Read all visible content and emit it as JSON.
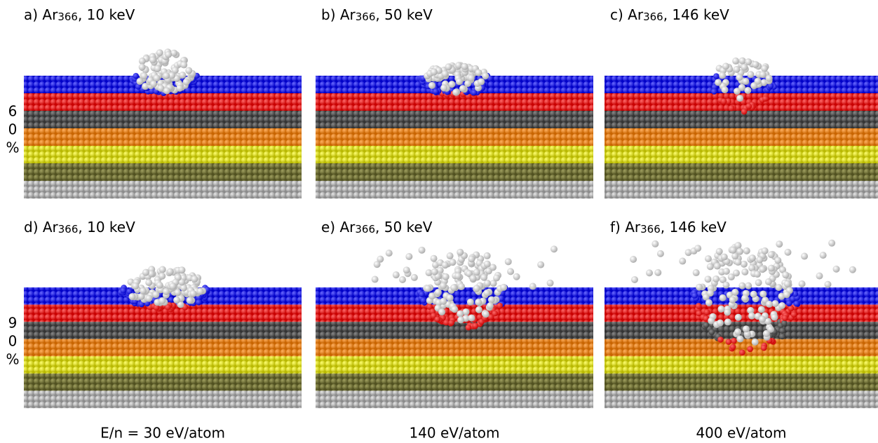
{
  "panels": [
    {
      "label": {
        "prefix": "a) Ar",
        "subscript": "366",
        "suffix": ", 10 keV"
      }
    },
    {
      "label": {
        "prefix": "b) Ar",
        "subscript": "366",
        "suffix": ", 50 keV"
      }
    },
    {
      "label": {
        "prefix": "c) Ar",
        "subscript": "366",
        "suffix": ", 146 keV"
      }
    },
    {
      "label": {
        "prefix": "d) Ar",
        "subscript": "366",
        "suffix": ", 10 keV"
      }
    },
    {
      "label": {
        "prefix": "e) Ar",
        "subscript": "366",
        "suffix": ", 50 keV"
      }
    },
    {
      "label": {
        "prefix": "f) Ar",
        "subscript": "366",
        "suffix": ", 146 keV"
      }
    }
  ],
  "row_labels": [
    [
      "6",
      "0",
      "%"
    ],
    [
      "9",
      "0",
      "%"
    ]
  ],
  "footer": [
    "E/n = 30 eV/atom",
    "140 eV/atom",
    "400 eV/atom"
  ]
}
